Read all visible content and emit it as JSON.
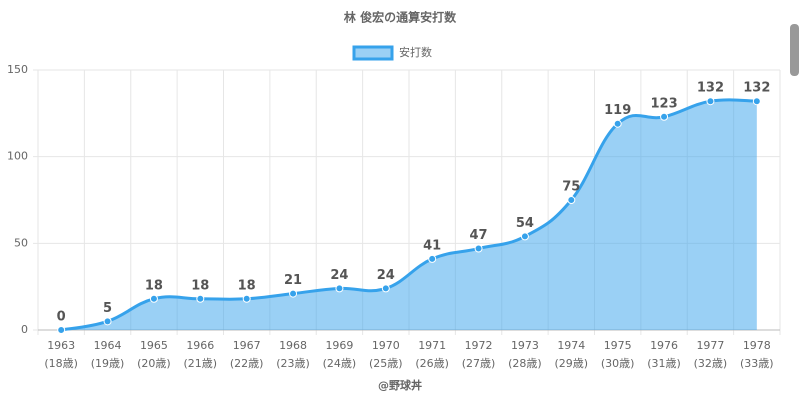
{
  "chart_data": {
    "type": "area",
    "title": "林 俊宏の通算安打数",
    "footer": "@野球丼",
    "categories": [
      [
        "1963",
        "(18歳)"
      ],
      [
        "1964",
        "(19歳)"
      ],
      [
        "1965",
        "(20歳)"
      ],
      [
        "1966",
        "(21歳)"
      ],
      [
        "1967",
        "(22歳)"
      ],
      [
        "1968",
        "(23歳)"
      ],
      [
        "1969",
        "(24歳)"
      ],
      [
        "1970",
        "(25歳)"
      ],
      [
        "1971",
        "(26歳)"
      ],
      [
        "1972",
        "(27歳)"
      ],
      [
        "1973",
        "(28歳)"
      ],
      [
        "1974",
        "(29歳)"
      ],
      [
        "1975",
        "(30歳)"
      ],
      [
        "1976",
        "(31歳)"
      ],
      [
        "1977",
        "(32歳)"
      ],
      [
        "1978",
        "(33歳)"
      ]
    ],
    "series": [
      {
        "name": "安打数",
        "color": "#36a2eb",
        "values": [
          0,
          5,
          18,
          18,
          18,
          21,
          24,
          24,
          41,
          47,
          54,
          75,
          119,
          123,
          132,
          132
        ]
      }
    ],
    "ylim": [
      0,
      150
    ],
    "yticks": [
      0,
      50,
      100,
      150
    ],
    "grid": true
  }
}
